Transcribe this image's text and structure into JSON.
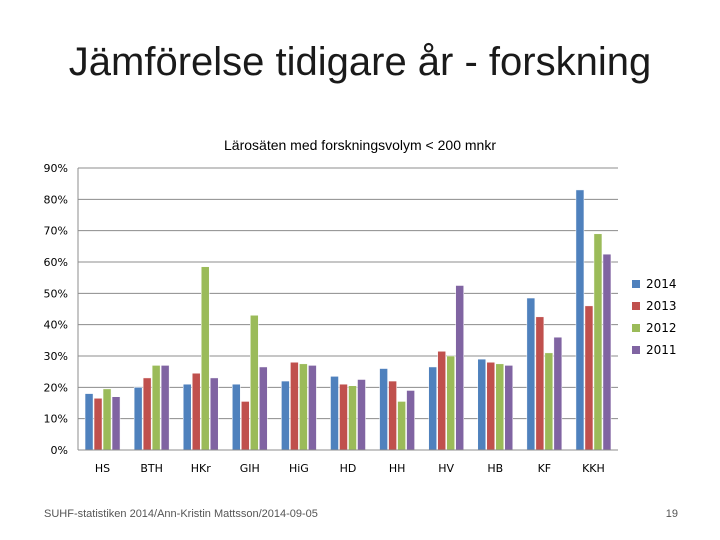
{
  "slide": {
    "title": "Jämförelse tidigare år - forskning",
    "footer_left": "SUHF-statistiken 2014/Ann-Kristin Mattsson/2014-09-05",
    "page_number": "19"
  },
  "chart_data": {
    "type": "bar",
    "title": "Lärosäten med forskningsvolym < 200 mnkr",
    "xlabel": "",
    "ylabel": "",
    "ylim": [
      0,
      90
    ],
    "yticks": [
      "0%",
      "10%",
      "20%",
      "30%",
      "40%",
      "50%",
      "60%",
      "70%",
      "80%",
      "90%"
    ],
    "grid": true,
    "legend_position": "right",
    "categories": [
      "HS",
      "BTH",
      "HKr",
      "GIH",
      "HiG",
      "HD",
      "HH",
      "HV",
      "HB",
      "KF",
      "KKH"
    ],
    "series": [
      {
        "name": "2014",
        "color": "#4f81bd",
        "values": [
          18,
          20,
          21,
          21,
          22,
          23.5,
          26,
          26.5,
          29,
          48.5,
          83
        ]
      },
      {
        "name": "2013",
        "color": "#c0504d",
        "values": [
          16.5,
          23,
          24.5,
          15.5,
          28,
          21,
          22,
          31.5,
          28,
          42.5,
          46
        ]
      },
      {
        "name": "2012",
        "color": "#9bbb59",
        "values": [
          19.5,
          27,
          58.5,
          43,
          27.5,
          20.5,
          15.5,
          30,
          27.5,
          31,
          69
        ]
      },
      {
        "name": "2011",
        "color": "#8064a2",
        "values": [
          17,
          27,
          23,
          26.5,
          27,
          22.5,
          19,
          52.5,
          27,
          36,
          62.5
        ]
      }
    ]
  }
}
